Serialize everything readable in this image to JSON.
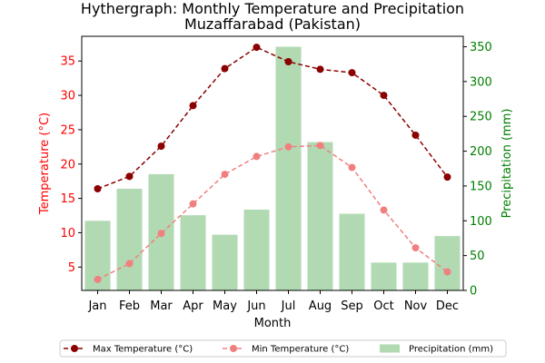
{
  "chart_data": {
    "type": "bar+line",
    "title": "Hythergraph: Monthly Temperature and Precipitation",
    "subtitle": "Muzaffarabad (Pakistan)",
    "xlabel": "Month",
    "ylabel_left": "Temperature (°C)",
    "ylabel_right": "Precipitation (mm)",
    "categories": [
      "Jan",
      "Feb",
      "Mar",
      "Apr",
      "May",
      "Jun",
      "Jul",
      "Aug",
      "Sep",
      "Oct",
      "Nov",
      "Dec"
    ],
    "ylim_left": [
      1.6,
      38.6
    ],
    "ylim_right": [
      0,
      365
    ],
    "yticks_left": [
      5,
      10,
      15,
      20,
      25,
      30,
      35
    ],
    "yticks_right": [
      0,
      50,
      100,
      150,
      200,
      250,
      300,
      350
    ],
    "series": [
      {
        "name": "Max Temperature (°C)",
        "kind": "line",
        "axis": "left",
        "color": "#8b0000",
        "style": "dashed",
        "values": [
          16.4,
          18.2,
          22.6,
          28.5,
          33.9,
          37.0,
          34.9,
          33.8,
          33.3,
          30.0,
          24.2,
          18.1
        ]
      },
      {
        "name": "Min Temperature (°C)",
        "kind": "line",
        "axis": "left",
        "color": "#f08080",
        "style": "dashed",
        "values": [
          3.2,
          5.5,
          9.9,
          14.2,
          18.5,
          21.1,
          22.5,
          22.7,
          19.5,
          13.3,
          7.8,
          4.3
        ]
      },
      {
        "name": "Precipitation (mm)",
        "kind": "bar",
        "axis": "right",
        "color": "#b2dab2",
        "values": [
          100,
          146,
          167,
          108,
          80,
          116,
          350,
          213,
          110,
          40,
          40,
          78
        ]
      }
    ],
    "axis_colors": {
      "left": "#ff0000",
      "right": "#008000"
    },
    "legend_position": "bottom"
  }
}
